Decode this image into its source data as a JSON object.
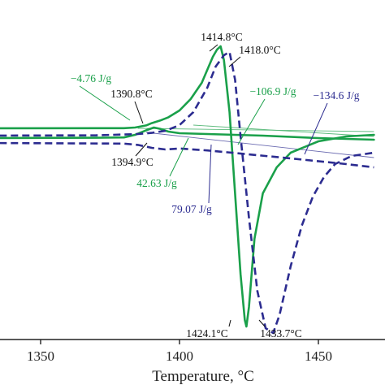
{
  "chart_data": {
    "type": "line",
    "title": "",
    "xlabel": "Temperature, °C",
    "ylabel": "",
    "xlim": [
      1327,
      1470
    ],
    "xticks": [
      1350,
      1400,
      1450
    ],
    "xtick_labels": [
      "1350",
      "1400",
      "1450"
    ],
    "grid": false,
    "legend": "none",
    "colors": {
      "green": "#1aa04a",
      "navy": "#2c2c90",
      "black": "#111111",
      "thin_green": "#5dbb7d",
      "thin_navy": "#6a6ab0"
    },
    "series": [
      {
        "style": "solid",
        "color": "green",
        "x": [
          1327,
          1380,
          1384,
          1388,
          1390,
          1393,
          1396,
          1400,
          1404,
          1408,
          1410,
          1412,
          1413.5,
          1414.8,
          1416,
          1418,
          1420,
          1422,
          1423.5,
          1424.1,
          1425,
          1427,
          1430,
          1435,
          1440,
          1450,
          1460,
          1470
        ],
        "y": [
          0.0,
          0.1,
          0.5,
          1.8,
          3.2,
          4.8,
          6.8,
          11.0,
          18.0,
          28.0,
          36.0,
          44.0,
          48.5,
          50.5,
          42.0,
          10.0,
          -40.0,
          -90.0,
          -118.0,
          -122.0,
          -110.0,
          -68.0,
          -40.0,
          -24.0,
          -15.0,
          -8.0,
          -5.0,
          -4.0
        ]
      },
      {
        "style": "solid",
        "color": "green",
        "x": [
          1327,
          1370,
          1380,
          1384,
          1388,
          1390.8,
          1393,
          1396,
          1400,
          1410,
          1420,
          1430,
          1450,
          1470
        ],
        "y": [
          -6.0,
          -5.8,
          -5.6,
          -4.0,
          -1.2,
          0.5,
          -0.3,
          -2.0,
          -3.0,
          -3.5,
          -4.0,
          -4.5,
          -6.0,
          -7.0
        ]
      },
      {
        "style": "dashed",
        "color": "navy",
        "x": [
          1327,
          1370,
          1380,
          1385,
          1390,
          1395,
          1400,
          1405,
          1410,
          1413,
          1416,
          1418.0,
          1420,
          1422,
          1425,
          1428,
          1431,
          1433.7,
          1436,
          1440,
          1444,
          1448,
          1452,
          1456,
          1462,
          1470
        ],
        "y": [
          -4.5,
          -4.3,
          -3.8,
          -3.5,
          -2.8,
          -1.5,
          2.0,
          10.0,
          25.0,
          38.0,
          45.0,
          47.0,
          30.0,
          -5.0,
          -55.0,
          -100.0,
          -123.0,
          -126.0,
          -115.0,
          -85.0,
          -60.0,
          -42.0,
          -30.0,
          -22.0,
          -17.0,
          -15.0
        ]
      },
      {
        "style": "dashed",
        "color": "navy",
        "x": [
          1327,
          1380,
          1385,
          1390,
          1394.9,
          1400,
          1410,
          1420,
          1440,
          1460,
          1470
        ],
        "y": [
          -9.0,
          -9.4,
          -10.2,
          -12.0,
          -13.0,
          -12.4,
          -13.6,
          -15.2,
          -18.5,
          -22.0,
          -24.0
        ]
      }
    ],
    "baselines": [
      {
        "style": "thin",
        "color": "thin_green",
        "x": [
          1385,
          1470
        ],
        "y": [
          0.0,
          -2.0
        ]
      },
      {
        "style": "thin",
        "color": "thin_green",
        "x": [
          1405,
          1470
        ],
        "y": [
          2.0,
          -5.0
        ]
      },
      {
        "style": "thin",
        "color": "thin_navy",
        "x": [
          1388,
          1470
        ],
        "y": [
          -2.5,
          -18.0
        ]
      }
    ],
    "annotations": [
      {
        "text": "1414.8°C",
        "color": "black"
      },
      {
        "text": "1418.0°C",
        "color": "black"
      },
      {
        "text": "−4.76 J/g",
        "color": "green"
      },
      {
        "text": "1390.8°C",
        "color": "black"
      },
      {
        "text": "−106.9 J/g",
        "color": "green"
      },
      {
        "text": "−134.6 J/g",
        "color": "navy"
      },
      {
        "text": "1394.9°C",
        "color": "black"
      },
      {
        "text": "42.63 J/g",
        "color": "green"
      },
      {
        "text": "79.07 J/g",
        "color": "navy"
      },
      {
        "text": "1424.1°C",
        "color": "black"
      },
      {
        "text": "1433.7°C",
        "color": "black"
      }
    ]
  }
}
